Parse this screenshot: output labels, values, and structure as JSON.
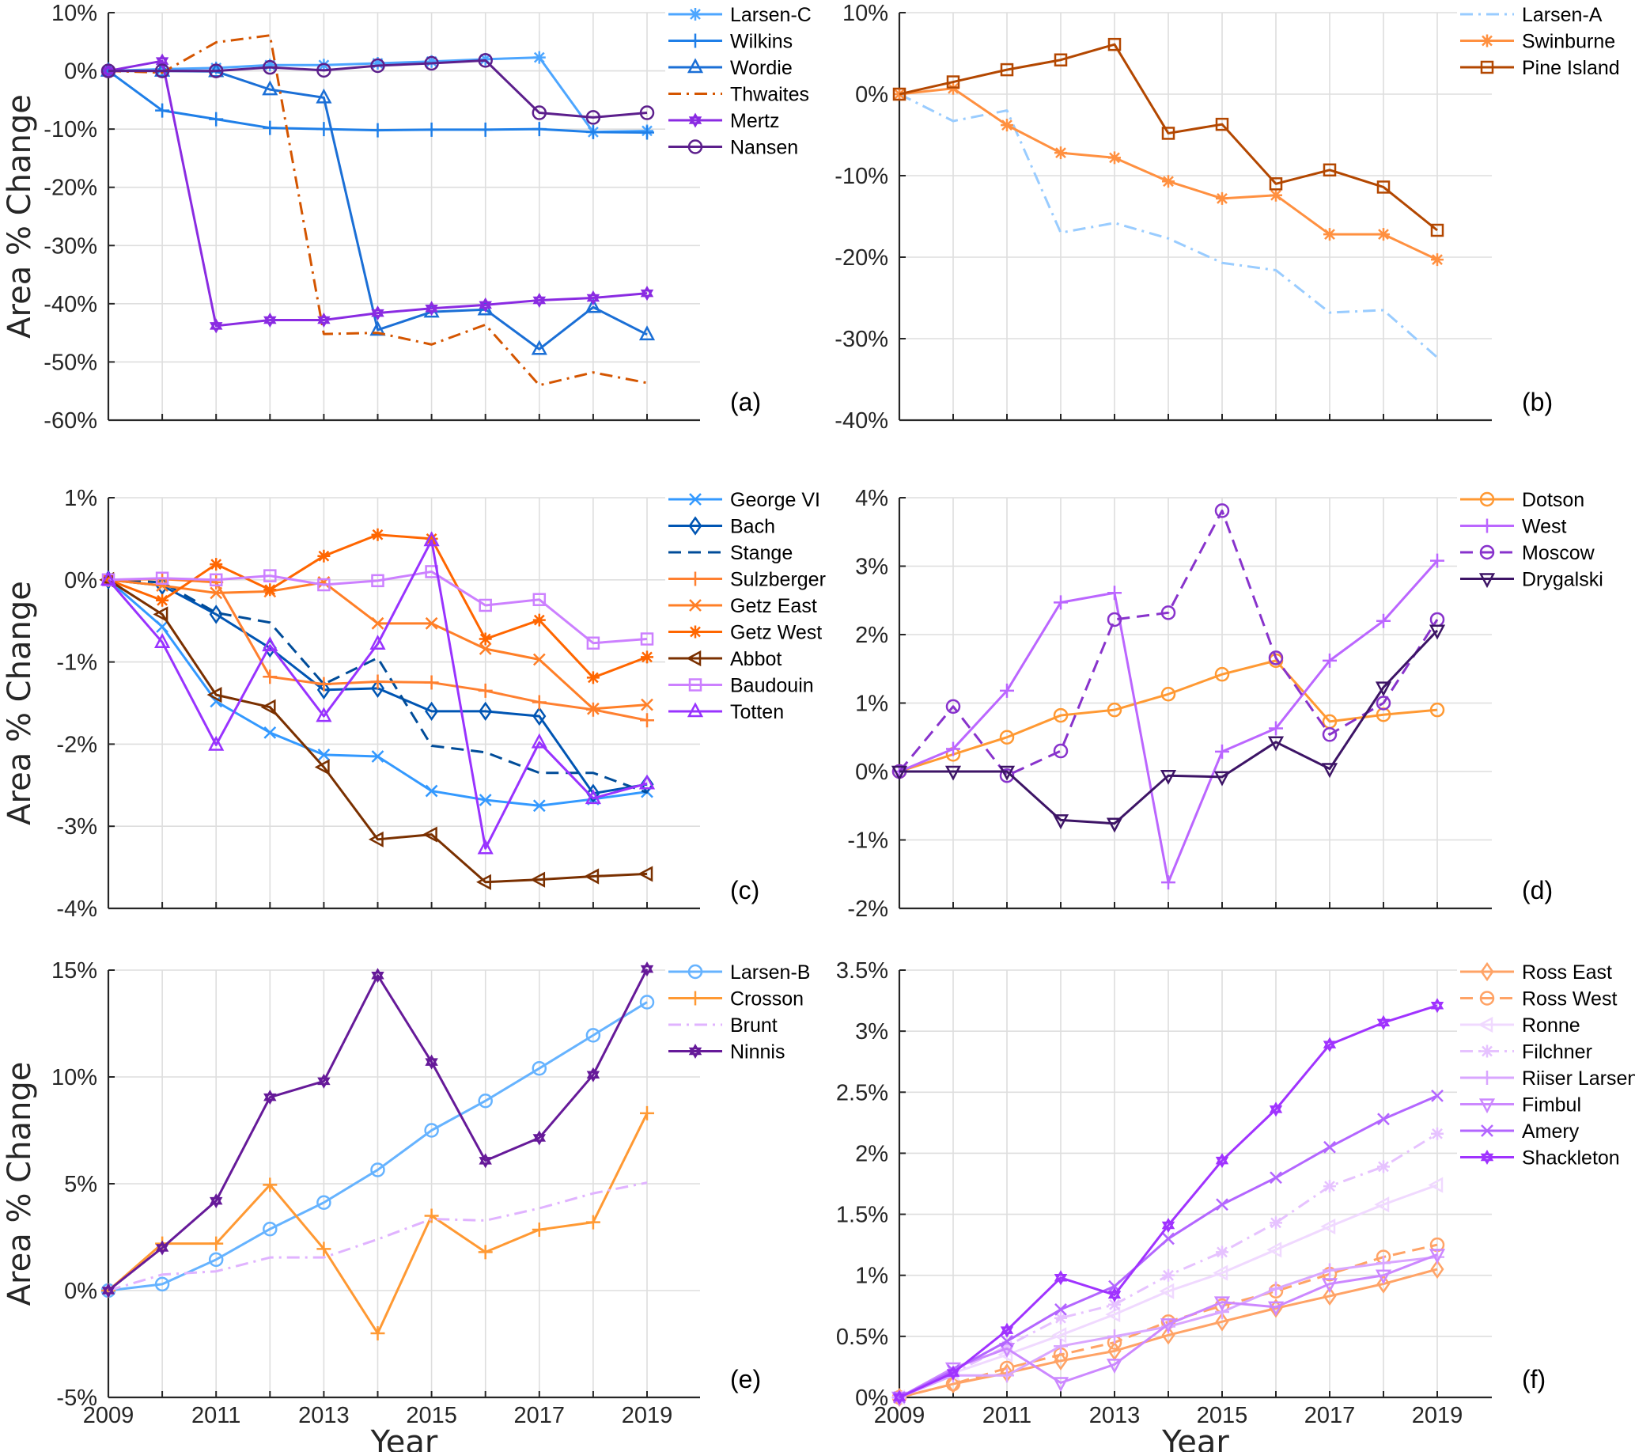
{
  "figure": {
    "ylabel": "Area % Change",
    "xlabel": "Year"
  },
  "chart_data": [
    {
      "id": "a",
      "type": "line",
      "panel_label": "(a)",
      "ylabel": "Area % Change",
      "xlabel": "",
      "x": [
        2009,
        2010,
        2011,
        2012,
        2013,
        2014,
        2015,
        2016,
        2017,
        2018,
        2019
      ],
      "xlim": [
        2009,
        2020
      ],
      "ylim": [
        -60,
        10
      ],
      "yticks": [
        10,
        0,
        -10,
        -20,
        -30,
        -40,
        -50,
        -60
      ],
      "ytick_labels": [
        "10%",
        "0%",
        "-10%",
        "-20%",
        "-30%",
        "-40%",
        "-50%",
        "-60%"
      ],
      "xticks": [],
      "grid": true,
      "legend": "top-right-outside",
      "series": [
        {
          "name": "Larsen-C",
          "color": "#4da6ff",
          "marker": "asterisk",
          "dash": "solid",
          "values": [
            0,
            0.3,
            0.5,
            1.0,
            1.0,
            1.3,
            1.6,
            2.0,
            2.3,
            -10.5,
            -10.3
          ]
        },
        {
          "name": "Wilkins",
          "color": "#1f7fe8",
          "marker": "plus",
          "dash": "solid",
          "values": [
            0,
            -6.8,
            -8.3,
            -9.8,
            -10.0,
            -10.2,
            -10.1,
            -10.1,
            -10.0,
            -10.5,
            -10.6
          ]
        },
        {
          "name": "Wordie",
          "color": "#1b6fd6",
          "marker": "triangle-up",
          "dash": "solid",
          "values": [
            0,
            0,
            -0.1,
            -3.2,
            -4.6,
            -44.5,
            -41.4,
            -41.0,
            -47.8,
            -40.6,
            -45.3
          ]
        },
        {
          "name": "Thwaites",
          "color": "#d45500",
          "marker": "none",
          "dash": "dashdot",
          "values": [
            0,
            -0.3,
            4.9,
            6.1,
            -45.2,
            -45.0,
            -47.0,
            -43.6,
            -54.0,
            -51.8,
            -53.6
          ]
        },
        {
          "name": "Mertz",
          "color": "#8a2be2",
          "marker": "hexagram",
          "dash": "solid",
          "values": [
            0,
            1.7,
            -43.8,
            -42.8,
            -42.8,
            -41.6,
            -40.8,
            -40.2,
            -39.4,
            -39.0,
            -38.2
          ]
        },
        {
          "name": "Nansen",
          "color": "#5c1f8c",
          "marker": "circle",
          "dash": "solid",
          "values": [
            0,
            0,
            0,
            0.6,
            0.1,
            0.9,
            1.3,
            1.8,
            -7.2,
            -8.0,
            -7.2
          ]
        }
      ]
    },
    {
      "id": "b",
      "type": "line",
      "panel_label": "(b)",
      "ylabel": "",
      "xlabel": "",
      "x": [
        2009,
        2010,
        2011,
        2012,
        2013,
        2014,
        2015,
        2016,
        2017,
        2018,
        2019
      ],
      "xlim": [
        2009,
        2020
      ],
      "ylim": [
        -40,
        10
      ],
      "yticks": [
        10,
        0,
        -10,
        -20,
        -30,
        -40
      ],
      "ytick_labels": [
        "10%",
        "0%",
        "-10%",
        "-20%",
        "-30%",
        "-40%"
      ],
      "xticks": [],
      "grid": true,
      "legend": "top-right-outside",
      "series": [
        {
          "name": "Larsen-A",
          "color": "#99ccff",
          "marker": "none",
          "dash": "dashdot",
          "values": [
            0,
            -3.3,
            -2.0,
            -17.0,
            -15.8,
            -17.7,
            -20.7,
            -21.6,
            -26.8,
            -26.5,
            -32.3
          ]
        },
        {
          "name": "Swinburne",
          "color": "#ff9040",
          "marker": "asterisk",
          "dash": "solid",
          "values": [
            0,
            0.7,
            -3.8,
            -7.2,
            -7.8,
            -10.7,
            -12.8,
            -12.4,
            -17.2,
            -17.2,
            -20.3
          ]
        },
        {
          "name": "Pine Island",
          "color": "#b34700",
          "marker": "square",
          "dash": "solid",
          "values": [
            0,
            1.5,
            3.0,
            4.2,
            6.1,
            -4.8,
            -3.7,
            -11.0,
            -9.3,
            -11.4,
            -16.7
          ]
        }
      ]
    },
    {
      "id": "c",
      "type": "line",
      "panel_label": "(c)",
      "ylabel": "Area % Change",
      "xlabel": "",
      "x": [
        2009,
        2010,
        2011,
        2012,
        2013,
        2014,
        2015,
        2016,
        2017,
        2018,
        2019
      ],
      "xlim": [
        2009,
        2020
      ],
      "ylim": [
        -4,
        1
      ],
      "yticks": [
        1,
        0,
        -1,
        -2,
        -3,
        -4
      ],
      "ytick_labels": [
        "1%",
        "0%",
        "-1%",
        "-2%",
        "-3%",
        "-4%"
      ],
      "xticks": [],
      "grid": true,
      "legend": "top-right-outside",
      "series": [
        {
          "name": "George VI",
          "color": "#3399ff",
          "marker": "x",
          "dash": "solid",
          "values": [
            0,
            -0.57,
            -1.48,
            -1.86,
            -2.13,
            -2.15,
            -2.57,
            -2.68,
            -2.75,
            -2.67,
            -2.58
          ]
        },
        {
          "name": "Bach",
          "color": "#0055b3",
          "marker": "diamond",
          "dash": "solid",
          "values": [
            0,
            -0.07,
            -0.42,
            -0.83,
            -1.34,
            -1.32,
            -1.6,
            -1.6,
            -1.66,
            -2.6,
            -2.49
          ]
        },
        {
          "name": "Stange",
          "color": "#004c99",
          "marker": "none",
          "dash": "dashed",
          "values": [
            0,
            -0.03,
            -0.4,
            -0.52,
            -1.27,
            -0.95,
            -2.02,
            -2.1,
            -2.35,
            -2.35,
            -2.59
          ]
        },
        {
          "name": "Sulzberger",
          "color": "#ff8030",
          "marker": "plus",
          "dash": "solid",
          "values": [
            0,
            0.01,
            -0.03,
            -1.18,
            -1.27,
            -1.24,
            -1.25,
            -1.35,
            -1.49,
            -1.58,
            -1.71
          ]
        },
        {
          "name": "Getz East",
          "color": "#ff7f27",
          "marker": "x",
          "dash": "solid",
          "values": [
            0,
            -0.07,
            -0.16,
            -0.14,
            -0.03,
            -0.53,
            -0.53,
            -0.84,
            -0.97,
            -1.57,
            -1.52
          ]
        },
        {
          "name": "Getz West",
          "color": "#ff6600",
          "marker": "asterisk",
          "dash": "solid",
          "values": [
            0,
            -0.25,
            0.19,
            -0.12,
            0.29,
            0.55,
            0.5,
            -0.72,
            -0.49,
            -1.19,
            -0.94
          ]
        },
        {
          "name": "Abbot",
          "color": "#7a3000",
          "marker": "triangle-left",
          "dash": "solid",
          "values": [
            0,
            -0.42,
            -1.4,
            -1.55,
            -2.28,
            -3.16,
            -3.1,
            -3.68,
            -3.65,
            -3.61,
            -3.58
          ]
        },
        {
          "name": "Baudouin",
          "color": "#cc80ff",
          "marker": "square",
          "dash": "solid",
          "values": [
            0,
            0.02,
            0.0,
            0.05,
            -0.06,
            -0.01,
            0.1,
            -0.31,
            -0.24,
            -0.77,
            -0.72
          ]
        },
        {
          "name": "Totten",
          "color": "#9933ff",
          "marker": "triangle-up",
          "dash": "solid",
          "values": [
            0,
            -0.76,
            -2.01,
            -0.8,
            -1.66,
            -0.78,
            0.48,
            -3.27,
            -1.98,
            -2.66,
            -2.48
          ]
        }
      ]
    },
    {
      "id": "d",
      "type": "line",
      "panel_label": "(d)",
      "ylabel": "",
      "xlabel": "",
      "x": [
        2009,
        2010,
        2011,
        2012,
        2013,
        2014,
        2015,
        2016,
        2017,
        2018,
        2019
      ],
      "xlim": [
        2009,
        2020
      ],
      "ylim": [
        -2,
        4
      ],
      "yticks": [
        4,
        3,
        2,
        1,
        0,
        -1,
        -2
      ],
      "ytick_labels": [
        "4%",
        "3%",
        "2%",
        "1%",
        "0%",
        "-1%",
        "-2%"
      ],
      "xticks": [],
      "grid": true,
      "legend": "top-right-outside",
      "series": [
        {
          "name": "Dotson",
          "color": "#ff9933",
          "marker": "circle",
          "dash": "solid",
          "values": [
            0,
            0.25,
            0.5,
            0.82,
            0.9,
            1.13,
            1.42,
            1.62,
            0.73,
            0.83,
            0.9
          ]
        },
        {
          "name": "West",
          "color": "#bb66ff",
          "marker": "plus",
          "dash": "solid",
          "values": [
            0,
            0.33,
            1.18,
            2.47,
            2.61,
            -1.62,
            0.29,
            0.63,
            1.62,
            2.2,
            3.08
          ]
        },
        {
          "name": "Moscow",
          "color": "#8833cc",
          "marker": "circle",
          "dash": "dashed",
          "values": [
            0,
            0.95,
            -0.06,
            0.3,
            2.22,
            2.32,
            3.81,
            1.66,
            0.54,
            1.0,
            2.22
          ]
        },
        {
          "name": "Drygalski",
          "color": "#3d1466",
          "marker": "triangle-down",
          "dash": "solid",
          "values": [
            0,
            0,
            0,
            -0.71,
            -0.76,
            -0.06,
            -0.08,
            0.43,
            0.04,
            1.23,
            2.06
          ]
        }
      ]
    },
    {
      "id": "e",
      "type": "line",
      "panel_label": "(e)",
      "ylabel": "Area % Change",
      "xlabel": "Year",
      "x": [
        2009,
        2010,
        2011,
        2012,
        2013,
        2014,
        2015,
        2016,
        2017,
        2018,
        2019
      ],
      "xlim": [
        2009,
        2020
      ],
      "ylim": [
        -5,
        15
      ],
      "yticks": [
        15,
        10,
        5,
        0,
        -5
      ],
      "ytick_labels": [
        "15%",
        "10%",
        "5%",
        "0%",
        "-5%"
      ],
      "xticks": [
        2009,
        2011,
        2013,
        2015,
        2017,
        2019
      ],
      "xtick_labels": [
        "2009",
        "2011",
        "2013",
        "2015",
        "2017",
        "2019"
      ],
      "grid": true,
      "legend": "top-right-outside",
      "series": [
        {
          "name": "Larsen-B",
          "color": "#66b3ff",
          "marker": "circle",
          "dash": "solid",
          "values": [
            0,
            0.3,
            1.45,
            2.88,
            4.12,
            5.65,
            7.5,
            8.88,
            10.4,
            11.95,
            13.5
          ]
        },
        {
          "name": "Crosson",
          "color": "#ff9933",
          "marker": "plus",
          "dash": "solid",
          "values": [
            0,
            2.2,
            2.2,
            4.95,
            1.95,
            -2.0,
            3.5,
            1.8,
            2.85,
            3.2,
            8.3
          ]
        },
        {
          "name": "Brunt",
          "color": "#e0b3ff",
          "marker": "none",
          "dash": "dashdot",
          "values": [
            0,
            0.75,
            0.9,
            1.55,
            1.55,
            2.4,
            3.35,
            3.28,
            3.85,
            4.55,
            5.05
          ]
        },
        {
          "name": "Ninnis",
          "color": "#661a99",
          "marker": "hexagram",
          "dash": "solid",
          "values": [
            0,
            2.0,
            4.2,
            9.05,
            9.8,
            14.75,
            10.7,
            6.08,
            7.15,
            10.1,
            15.05
          ]
        }
      ]
    },
    {
      "id": "f",
      "type": "line",
      "panel_label": "(f)",
      "ylabel": "",
      "xlabel": "Year",
      "x": [
        2009,
        2010,
        2011,
        2012,
        2013,
        2014,
        2015,
        2016,
        2017,
        2018,
        2019
      ],
      "xlim": [
        2009,
        2020
      ],
      "ylim": [
        0,
        3.5
      ],
      "yticks": [
        3.5,
        3,
        2.5,
        2,
        1.5,
        1,
        0.5,
        0
      ],
      "ytick_labels": [
        "3.5%",
        "3%",
        "2.5%",
        "2%",
        "1.5%",
        "1%",
        "0.5%",
        "0%"
      ],
      "xticks": [
        2009,
        2011,
        2013,
        2015,
        2017,
        2019
      ],
      "xtick_labels": [
        "2009",
        "2011",
        "2013",
        "2015",
        "2017",
        "2019"
      ],
      "grid": true,
      "legend": "top-right-outside",
      "series": [
        {
          "name": "Ross East",
          "color": "#ffa366",
          "marker": "diamond",
          "dash": "solid",
          "values": [
            0,
            0.11,
            0.2,
            0.3,
            0.38,
            0.51,
            0.62,
            0.73,
            0.83,
            0.93,
            1.05
          ]
        },
        {
          "name": "Ross West",
          "color": "#ffa366",
          "marker": "circle",
          "dash": "dashed",
          "values": [
            0,
            0.11,
            0.24,
            0.35,
            0.45,
            0.62,
            0.75,
            0.87,
            1.01,
            1.15,
            1.25
          ]
        },
        {
          "name": "Ronne",
          "color": "#f0d9ff",
          "marker": "triangle-left",
          "dash": "solid",
          "values": [
            0,
            0.2,
            0.35,
            0.51,
            0.68,
            0.87,
            1.02,
            1.21,
            1.4,
            1.58,
            1.74
          ]
        },
        {
          "name": "Filchner",
          "color": "#e6c2ff",
          "marker": "asterisk",
          "dash": "dashdot",
          "values": [
            0,
            0.2,
            0.42,
            0.65,
            0.76,
            1.0,
            1.19,
            1.43,
            1.73,
            1.89,
            2.16
          ]
        },
        {
          "name": "Riiser Larsen",
          "color": "#d9a6ff",
          "marker": "plus",
          "dash": "solid",
          "values": [
            0,
            0.18,
            0.18,
            0.42,
            0.5,
            0.58,
            0.7,
            0.89,
            1.04,
            1.1,
            1.15
          ]
        },
        {
          "name": "Fimbul",
          "color": "#cc88ff",
          "marker": "triangle-down",
          "dash": "solid",
          "values": [
            0,
            0.24,
            0.4,
            0.12,
            0.27,
            0.6,
            0.78,
            0.74,
            0.93,
            1.0,
            1.17
          ]
        },
        {
          "name": "Amery",
          "color": "#b366ff",
          "marker": "x",
          "dash": "solid",
          "values": [
            0,
            0.22,
            0.46,
            0.72,
            0.91,
            1.3,
            1.58,
            1.8,
            2.05,
            2.28,
            2.47
          ]
        },
        {
          "name": "Shackleton",
          "color": "#a033ff",
          "marker": "hexagram",
          "dash": "solid",
          "values": [
            0,
            0.2,
            0.55,
            0.98,
            0.84,
            1.41,
            1.94,
            2.36,
            2.89,
            3.07,
            3.21
          ]
        }
      ]
    }
  ]
}
